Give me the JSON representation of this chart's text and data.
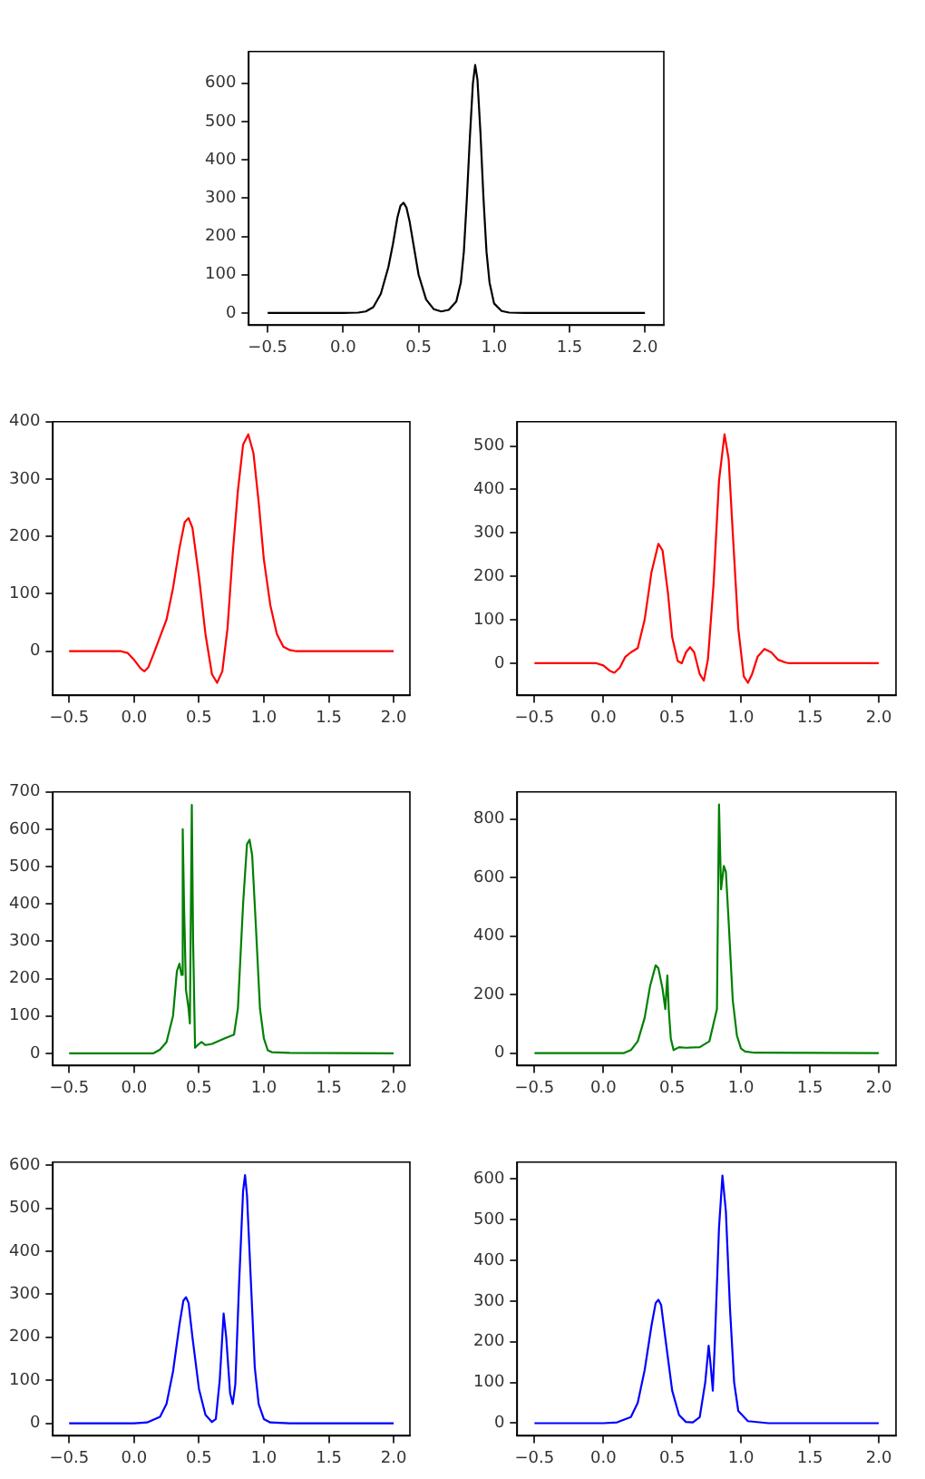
{
  "chart_data": [
    {
      "type": "line",
      "x": [
        -0.5,
        0.0,
        0.1,
        0.15,
        0.2,
        0.25,
        0.3,
        0.33,
        0.36,
        0.38,
        0.4,
        0.42,
        0.44,
        0.47,
        0.5,
        0.55,
        0.6,
        0.65,
        0.7,
        0.75,
        0.78,
        0.8,
        0.82,
        0.84,
        0.86,
        0.875,
        0.89,
        0.91,
        0.93,
        0.95,
        0.97,
        1.0,
        1.05,
        1.1,
        1.2,
        2.0
      ],
      "series": [
        {
          "color": "#000000",
          "values": [
            0,
            0,
            1,
            4,
            15,
            50,
            120,
            180,
            250,
            280,
            288,
            275,
            240,
            170,
            100,
            35,
            10,
            4,
            8,
            30,
            80,
            160,
            300,
            460,
            600,
            648,
            610,
            470,
            300,
            160,
            80,
            25,
            5,
            1,
            0,
            0
          ]
        }
      ],
      "xlim": [
        -0.625,
        2.125
      ],
      "xticks": [
        {
          "value": -0.5,
          "label": "−0.5"
        },
        {
          "value": 0,
          "label": "0.0"
        },
        {
          "value": 0.5,
          "label": "0.5"
        },
        {
          "value": 1,
          "label": "1.0"
        },
        {
          "value": 1.5,
          "label": "1.5"
        },
        {
          "value": 2,
          "label": "2.0"
        }
      ],
      "ylim": [
        -32,
        683
      ],
      "yticks": [
        0,
        100,
        200,
        300,
        400,
        500,
        600
      ]
    },
    {
      "type": "line",
      "x": [
        -0.5,
        -0.1,
        -0.05,
        0.0,
        0.05,
        0.08,
        0.11,
        0.15,
        0.2,
        0.25,
        0.3,
        0.35,
        0.39,
        0.42,
        0.45,
        0.5,
        0.55,
        0.6,
        0.64,
        0.68,
        0.72,
        0.76,
        0.8,
        0.84,
        0.88,
        0.92,
        0.96,
        1.0,
        1.05,
        1.1,
        1.15,
        1.2,
        1.25,
        2.0
      ],
      "series": [
        {
          "color": "#ff0000",
          "values": [
            0,
            0,
            -3,
            -15,
            -30,
            -35,
            -28,
            -5,
            25,
            55,
            110,
            180,
            225,
            232,
            215,
            130,
            30,
            -40,
            -55,
            -35,
            40,
            170,
            280,
            360,
            378,
            345,
            260,
            160,
            80,
            30,
            8,
            2,
            0,
            0
          ]
        }
      ],
      "xlim": [
        -0.625,
        2.125
      ],
      "xticks": [
        {
          "value": -0.5,
          "label": "−0.5"
        },
        {
          "value": 0,
          "label": "0.0"
        },
        {
          "value": 0.5,
          "label": "0.5"
        },
        {
          "value": 1,
          "label": "1.0"
        },
        {
          "value": 1.5,
          "label": "1.5"
        },
        {
          "value": 2,
          "label": "2.0"
        }
      ],
      "ylim": [
        -77,
        400
      ],
      "yticks": [
        0,
        100,
        200,
        300,
        400
      ]
    },
    {
      "type": "line",
      "x": [
        -0.5,
        -0.05,
        0.0,
        0.05,
        0.08,
        0.12,
        0.16,
        0.2,
        0.25,
        0.3,
        0.35,
        0.4,
        0.43,
        0.47,
        0.5,
        0.54,
        0.57,
        0.6,
        0.63,
        0.66,
        0.7,
        0.73,
        0.76,
        0.8,
        0.84,
        0.88,
        0.91,
        0.94,
        0.98,
        1.02,
        1.05,
        1.08,
        1.12,
        1.17,
        1.22,
        1.27,
        1.32,
        1.35,
        2.0
      ],
      "series": [
        {
          "color": "#ff0000",
          "values": [
            0,
            0,
            -5,
            -18,
            -22,
            -10,
            15,
            25,
            35,
            100,
            210,
            275,
            260,
            160,
            60,
            5,
            0,
            25,
            37,
            25,
            -25,
            -40,
            10,
            180,
            420,
            527,
            470,
            300,
            80,
            -30,
            -45,
            -25,
            15,
            33,
            25,
            8,
            2,
            0,
            0
          ]
        }
      ],
      "xlim": [
        -0.625,
        2.125
      ],
      "xticks": [
        {
          "value": -0.5,
          "label": "−0.5"
        },
        {
          "value": 0,
          "label": "0.0"
        },
        {
          "value": 0.5,
          "label": "0.5"
        },
        {
          "value": 1,
          "label": "1.0"
        },
        {
          "value": 1.5,
          "label": "1.5"
        },
        {
          "value": 2,
          "label": "2.0"
        }
      ],
      "ylim": [
        -74,
        556
      ],
      "yticks": [
        0,
        100,
        200,
        300,
        400,
        500
      ]
    },
    {
      "type": "line",
      "x": [
        -0.5,
        0.15,
        0.2,
        0.25,
        0.3,
        0.33,
        0.35,
        0.365,
        0.375,
        0.385,
        0.4,
        0.42,
        0.43,
        0.445,
        0.455,
        0.47,
        0.5,
        0.52,
        0.55,
        0.6,
        0.7,
        0.77,
        0.8,
        0.84,
        0.87,
        0.89,
        0.91,
        0.94,
        0.97,
        1.0,
        1.03,
        1.06,
        1.2,
        2.0
      ],
      "series": [
        {
          "color": "#008000",
          "values": [
            0,
            0,
            10,
            30,
            100,
            220,
            240,
            210,
            600,
            400,
            170,
            120,
            80,
            665,
            300,
            15,
            25,
            30,
            22,
            25,
            40,
            50,
            120,
            400,
            560,
            572,
            530,
            330,
            120,
            40,
            8,
            3,
            1,
            0
          ]
        }
      ],
      "xlim": [
        -0.625,
        2.125
      ],
      "xticks": [
        {
          "value": -0.5,
          "label": "−0.5"
        },
        {
          "value": 0,
          "label": "0.0"
        },
        {
          "value": 0.5,
          "label": "0.5"
        },
        {
          "value": 1,
          "label": "1.0"
        },
        {
          "value": 1.5,
          "label": "1.5"
        },
        {
          "value": 2,
          "label": "2.0"
        }
      ],
      "ylim": [
        -33,
        700
      ],
      "yticks": [
        0,
        100,
        200,
        300,
        400,
        500,
        600,
        700
      ]
    },
    {
      "type": "line",
      "x": [
        -0.5,
        0.15,
        0.2,
        0.25,
        0.3,
        0.34,
        0.38,
        0.4,
        0.43,
        0.45,
        0.465,
        0.475,
        0.49,
        0.51,
        0.55,
        0.6,
        0.7,
        0.77,
        0.8,
        0.825,
        0.84,
        0.855,
        0.875,
        0.89,
        0.91,
        0.94,
        0.97,
        1.0,
        1.03,
        1.1,
        2.0
      ],
      "series": [
        {
          "color": "#008000",
          "values": [
            0,
            0,
            10,
            40,
            120,
            230,
            300,
            290,
            220,
            150,
            265,
            150,
            50,
            10,
            20,
            18,
            20,
            40,
            100,
            150,
            850,
            560,
            640,
            620,
            450,
            180,
            60,
            15,
            5,
            1,
            0
          ]
        }
      ],
      "xlim": [
        -0.625,
        2.125
      ],
      "xticks": [
        {
          "value": -0.5,
          "label": "−0.5"
        },
        {
          "value": 0,
          "label": "0.0"
        },
        {
          "value": 0.5,
          "label": "0.5"
        },
        {
          "value": 1,
          "label": "1.0"
        },
        {
          "value": 1.5,
          "label": "1.5"
        },
        {
          "value": 2,
          "label": "2.0"
        }
      ],
      "ylim": [
        -43,
        893
      ],
      "yticks": [
        0,
        200,
        400,
        600,
        800
      ]
    },
    {
      "type": "line",
      "x": [
        -0.5,
        0.0,
        0.1,
        0.2,
        0.25,
        0.3,
        0.35,
        0.38,
        0.4,
        0.42,
        0.45,
        0.5,
        0.55,
        0.6,
        0.63,
        0.66,
        0.69,
        0.71,
        0.74,
        0.76,
        0.78,
        0.81,
        0.84,
        0.855,
        0.87,
        0.9,
        0.93,
        0.96,
        1.0,
        1.05,
        1.2,
        2.0
      ],
      "series": [
        {
          "color": "#0000ff",
          "values": [
            0,
            0,
            2,
            15,
            45,
            120,
            230,
            285,
            293,
            280,
            200,
            80,
            20,
            3,
            10,
            100,
            255,
            200,
            70,
            45,
            90,
            330,
            540,
            577,
            530,
            330,
            130,
            45,
            10,
            2,
            0,
            0
          ]
        }
      ],
      "xlim": [
        -0.625,
        2.125
      ],
      "xticks": [
        {
          "value": -0.5,
          "label": "−0.5"
        },
        {
          "value": 0,
          "label": "0.0"
        },
        {
          "value": 0.5,
          "label": "0.5"
        },
        {
          "value": 1,
          "label": "1.0"
        },
        {
          "value": 1.5,
          "label": "1.5"
        },
        {
          "value": 2,
          "label": "2.0"
        }
      ],
      "ylim": [
        -29,
        607
      ],
      "yticks": [
        0,
        100,
        200,
        300,
        400,
        500,
        600
      ]
    },
    {
      "type": "line",
      "x": [
        -0.5,
        0.0,
        0.1,
        0.2,
        0.25,
        0.3,
        0.35,
        0.38,
        0.4,
        0.42,
        0.45,
        0.5,
        0.55,
        0.6,
        0.65,
        0.7,
        0.74,
        0.765,
        0.78,
        0.795,
        0.81,
        0.84,
        0.865,
        0.89,
        0.92,
        0.95,
        0.98,
        1.05,
        1.2,
        2.0
      ],
      "series": [
        {
          "color": "#0000ff",
          "values": [
            0,
            0,
            2,
            15,
            50,
            130,
            240,
            295,
            303,
            290,
            210,
            80,
            20,
            3,
            2,
            15,
            100,
            190,
            140,
            80,
            200,
            480,
            608,
            520,
            280,
            100,
            30,
            5,
            0,
            0
          ]
        }
      ],
      "xlim": [
        -0.625,
        2.125
      ],
      "xticks": [
        {
          "value": -0.5,
          "label": "−0.5"
        },
        {
          "value": 0,
          "label": "0.0"
        },
        {
          "value": 0.5,
          "label": "0.5"
        },
        {
          "value": 1,
          "label": "1.0"
        },
        {
          "value": 1.5,
          "label": "1.5"
        },
        {
          "value": 2,
          "label": "2.0"
        }
      ],
      "ylim": [
        -31,
        641
      ],
      "yticks": [
        0,
        100,
        200,
        300,
        400,
        500,
        600
      ]
    }
  ]
}
